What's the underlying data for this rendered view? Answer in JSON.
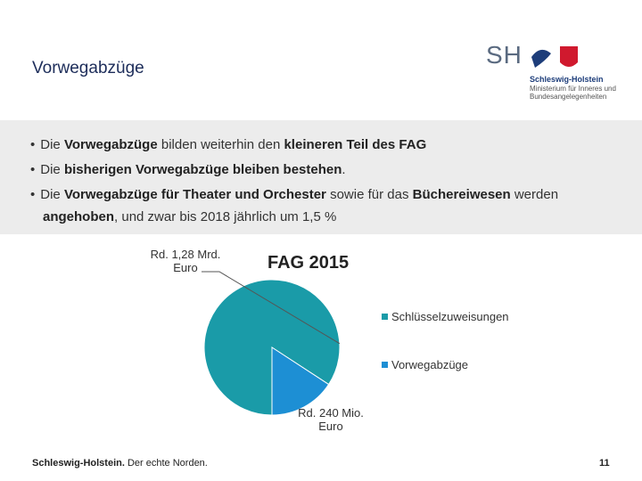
{
  "header": {
    "title": "Vorwegabzüge",
    "logo": {
      "mark": "SH",
      "name": "Schleswig-Holstein",
      "ministry": "Ministerium für Inneres und Bundesangelegenheiten"
    }
  },
  "bullets": [
    [
      {
        "text": "Die ",
        "bold": false
      },
      {
        "text": "Vorwegabzüge",
        "bold": true
      },
      {
        "text": " bilden weiterhin den ",
        "bold": false
      },
      {
        "text": "kleineren Teil des FAG",
        "bold": true
      }
    ],
    [
      {
        "text": "Die ",
        "bold": false
      },
      {
        "text": "bisherigen Vorwegabzüge bleiben bestehen",
        "bold": true
      },
      {
        "text": ".",
        "bold": false
      }
    ],
    [
      {
        "text": "Die ",
        "bold": false
      },
      {
        "text": "Vorwegabzüge für Theater und Orchester",
        "bold": true
      },
      {
        "text": " sowie für das ",
        "bold": false
      },
      {
        "text": "Büchereiwesen",
        "bold": true
      },
      {
        "text": " werden ",
        "bold": false
      },
      {
        "text": "angehoben",
        "bold": true
      },
      {
        "text": ", und zwar bis 2018 jährlich um 1,5 %",
        "bold": false
      }
    ]
  ],
  "chart_data": {
    "type": "pie",
    "title": "FAG 2015",
    "categories": [
      "Schlüsselzuweisungen",
      "Vorwegabzüge"
    ],
    "values": [
      1280,
      240
    ],
    "value_labels": [
      "Rd. 1,28 Mrd. Euro",
      "Rd. 240 Mio. Euro"
    ],
    "colors": [
      "#1a9ba8",
      "#1d8fd4"
    ],
    "legend": "right"
  },
  "footer": {
    "brand": "Schleswig-Holstein.",
    "slogan": " Der echte Norden.",
    "page": "11"
  }
}
